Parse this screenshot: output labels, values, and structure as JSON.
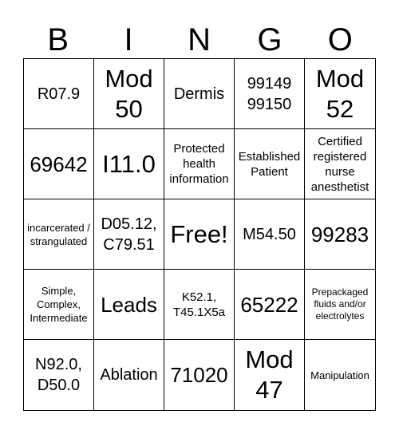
{
  "header": [
    "B",
    "I",
    "N",
    "G",
    "O"
  ],
  "cells": [
    "R07.9",
    "Mod 50",
    "Dermis",
    "99149 99150",
    "Mod 52",
    "69642",
    "I11.0",
    "Protected health information",
    "Established Patient",
    "Certified registered nurse anesthetist",
    "incarcerated / strangulated",
    "D05.12, C79.51",
    "Free!",
    "M54.50",
    "99283",
    "Simple, Complex, Intermediate",
    "Leads",
    "K52.1, T45.1X5a",
    "65222",
    "Prepackaged fluids and/or electrolytes",
    "N92.0, D50.0",
    "Ablation",
    "71020",
    "Mod 47",
    "Manipulation"
  ]
}
